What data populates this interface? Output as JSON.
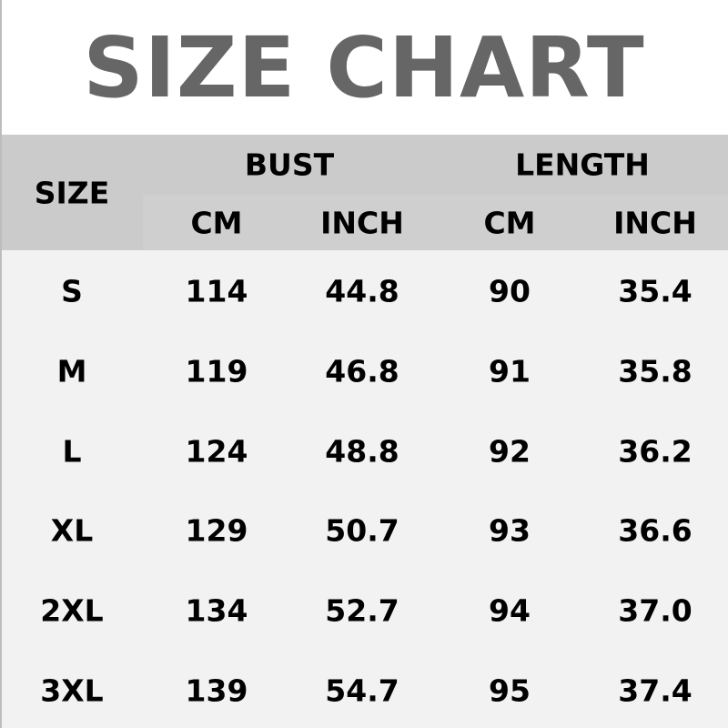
{
  "title": "SIZE CHART",
  "header": {
    "size": "SIZE",
    "groups": [
      "BUST",
      "LENGTH"
    ],
    "units": [
      "CM",
      "INCH",
      "CM",
      "INCH"
    ]
  },
  "rows": [
    [
      "S",
      "114",
      "44.8",
      "90",
      "35.4"
    ],
    [
      "M",
      "119",
      "46.8",
      "91",
      "35.8"
    ],
    [
      "L",
      "124",
      "48.8",
      "92",
      "36.2"
    ],
    [
      "XL",
      "129",
      "50.7",
      "93",
      "36.6"
    ],
    [
      "2XL",
      "134",
      "52.7",
      "94",
      "37.0"
    ],
    [
      "3XL",
      "139",
      "54.7",
      "95",
      "37.4"
    ]
  ],
  "colors": {
    "title": "#666666",
    "header": "#cbcbcb",
    "body": "#f2f2f2"
  }
}
